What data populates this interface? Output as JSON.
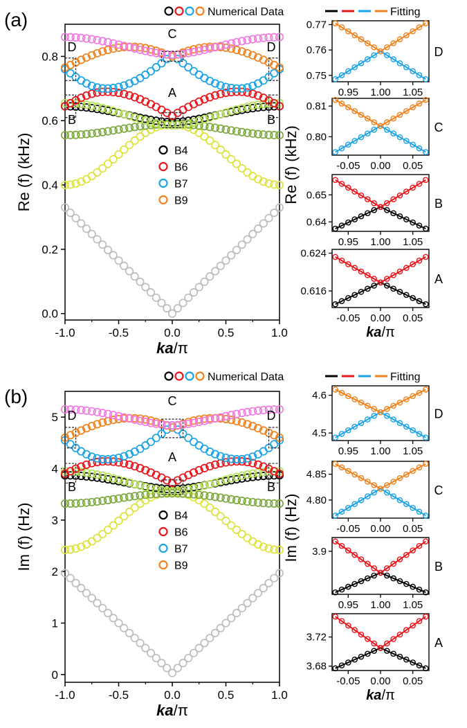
{
  "colors": {
    "B1": "#bdbdbd",
    "B2": "#dde23a",
    "B3": "#7aa83a",
    "B4": "#000000",
    "B5": "#b6e25a",
    "B6": "#e8141a",
    "B7": "#1aa2e6",
    "B8": "#f07bde",
    "B9": "#f0821e"
  },
  "header": {
    "numerical_label": "Numerical Data",
    "fitting_label": "Fitting"
  },
  "chart_data": [
    {
      "id": "a-main",
      "panel_label": "(a)",
      "type": "scatter",
      "xlabel": "ka/π",
      "ylabel": "Re (f) (kHz)",
      "xlim": [
        -1.0,
        1.0
      ],
      "ylim": [
        -0.02,
        0.9
      ],
      "xticks": [
        "-1.0",
        "-0.5",
        "0.0",
        "0.5",
        "1.0"
      ],
      "yticks": [
        "0.0",
        "0.2",
        "0.4",
        "0.6",
        "0.8"
      ],
      "legend": [
        "B4",
        "B6",
        "B7",
        "B9"
      ],
      "box_labels": [
        "A",
        "B",
        "B",
        "C",
        "D",
        "D"
      ],
      "series": [
        {
          "band": "B1",
          "kind": "abs",
          "params": [
            0.0,
            0.33
          ]
        },
        {
          "band": "B2",
          "kind": "cos",
          "params": [
            0.59,
            0.4,
            1
          ]
        },
        {
          "band": "B3",
          "kind": "cos",
          "params": [
            0.59,
            0.555,
            1
          ]
        },
        {
          "band": "B4",
          "kind": "cos",
          "params": [
            0.595,
            0.645,
            2
          ]
        },
        {
          "band": "B5",
          "kind": "cos",
          "params": [
            0.585,
            0.655,
            2
          ]
        },
        {
          "band": "B6",
          "kind": "cusp",
          "params": [
            0.615,
            0.69,
            0.645,
            0.62
          ]
        },
        {
          "band": "B7",
          "kind": "cusp",
          "params": [
            0.805,
            0.7,
            0.76,
            0.62
          ]
        },
        {
          "band": "B9",
          "kind": "cusp",
          "params": [
            0.8,
            0.83,
            0.765,
            0.38
          ]
        },
        {
          "band": "B8",
          "kind": "cos",
          "params": [
            0.805,
            0.86,
            2
          ]
        }
      ]
    },
    {
      "id": "b-main",
      "panel_label": "(b)",
      "type": "scatter",
      "xlabel": "ka/π",
      "ylabel": "Im (f) (Hz)",
      "xlim": [
        -1.0,
        1.0
      ],
      "ylim": [
        -0.15,
        5.5
      ],
      "xticks": [
        "-1.0",
        "-0.5",
        "0.0",
        "0.5",
        "1.0"
      ],
      "yticks": [
        "0",
        "1",
        "2",
        "3",
        "4",
        "5"
      ],
      "legend": [
        "B4",
        "B6",
        "B7",
        "B9"
      ],
      "box_labels": [
        "A",
        "B",
        "B",
        "C",
        "D",
        "D"
      ],
      "series": [
        {
          "band": "B1",
          "kind": "abs",
          "params": [
            0.03,
            1.97
          ]
        },
        {
          "band": "B2",
          "kind": "cos",
          "params": [
            3.55,
            2.42,
            1
          ]
        },
        {
          "band": "B3",
          "kind": "cos",
          "params": [
            3.52,
            3.32,
            1
          ]
        },
        {
          "band": "B4",
          "kind": "cos",
          "params": [
            3.6,
            3.87,
            2
          ]
        },
        {
          "band": "B5",
          "kind": "cos",
          "params": [
            3.56,
            3.95,
            2
          ]
        },
        {
          "band": "B6",
          "kind": "cusp",
          "params": [
            3.72,
            4.14,
            3.9,
            0.62
          ]
        },
        {
          "band": "B7",
          "kind": "cusp",
          "params": [
            4.84,
            4.18,
            4.55,
            0.62
          ]
        },
        {
          "band": "B9",
          "kind": "cusp",
          "params": [
            4.8,
            4.98,
            4.6,
            0.38
          ]
        },
        {
          "band": "B8",
          "kind": "cos",
          "params": [
            4.84,
            5.15,
            2
          ]
        }
      ]
    },
    {
      "id": "a-D",
      "type": "scatter",
      "label": "D",
      "xlim": [
        0.925,
        1.075
      ],
      "ylim": [
        0.7475,
        0.7715
      ],
      "xticks": [
        "0.95",
        "1.00",
        "1.05"
      ],
      "xtick_vals": [
        0.95,
        1.0,
        1.05
      ],
      "yticks": [
        "0.75",
        "0.76",
        "0.77"
      ],
      "ytick_vals": [
        0.75,
        0.76,
        0.77
      ],
      "x_range": [
        0.93,
        1.07
      ],
      "center": 1.0,
      "upper": {
        "band": "B9",
        "at_center": 0.7595,
        "at_edge": 0.7705
      },
      "lower": {
        "band": "B7",
        "at_center": 0.7595,
        "at_edge": 0.7485
      }
    },
    {
      "id": "a-C",
      "type": "scatter",
      "label": "C",
      "xlim": [
        -0.075,
        0.075
      ],
      "ylim": [
        0.794,
        0.8125
      ],
      "xticks": [
        "-0.05",
        "0.00",
        "0.05"
      ],
      "xtick_vals": [
        -0.05,
        0.0,
        0.05
      ],
      "yticks": [
        "0.80",
        "0.81"
      ],
      "ytick_vals": [
        0.8,
        0.81
      ],
      "x_range": [
        -0.07,
        0.07
      ],
      "center": 0.0,
      "upper": {
        "band": "B9",
        "at_center": 0.8035,
        "at_edge": 0.812
      },
      "lower": {
        "band": "B7",
        "at_center": 0.8035,
        "at_edge": 0.795
      }
    },
    {
      "id": "a-B",
      "type": "scatter",
      "label": "B",
      "xlim": [
        0.925,
        1.075
      ],
      "ylim": [
        0.6365,
        0.6575
      ],
      "xticks": [
        "0.95",
        "1.00",
        "1.05"
      ],
      "xtick_vals": [
        0.95,
        1.0,
        1.05
      ],
      "yticks": [
        "0.64",
        "0.65"
      ],
      "ytick_vals": [
        0.64,
        0.65
      ],
      "x_range": [
        0.93,
        1.07
      ],
      "center": 1.0,
      "upper": {
        "band": "B6",
        "at_center": 0.6455,
        "at_edge": 0.6555
      },
      "lower": {
        "band": "B4",
        "at_center": 0.6455,
        "at_edge": 0.6375
      }
    },
    {
      "id": "a-A",
      "type": "scatter",
      "label": "A",
      "xlim": [
        -0.075,
        0.075
      ],
      "ylim": [
        0.6125,
        0.6248
      ],
      "xticks": [
        "-0.05",
        "0.00",
        "0.05"
      ],
      "xtick_vals": [
        -0.05,
        0.0,
        0.05
      ],
      "yticks": [
        "0.616",
        "0.624"
      ],
      "ytick_vals": [
        0.616,
        0.624
      ],
      "x_range": [
        -0.07,
        0.07
      ],
      "center": 0.0,
      "xlabel": "ka/π",
      "upper": {
        "band": "B6",
        "at_center": 0.6178,
        "at_edge": 0.6232
      },
      "lower": {
        "band": "B4",
        "at_center": 0.6178,
        "at_edge": 0.6132
      }
    },
    {
      "id": "b-D",
      "type": "scatter",
      "label": "D",
      "xlim": [
        0.925,
        1.075
      ],
      "ylim": [
        4.48,
        4.625
      ],
      "xticks": [
        "0.95",
        "1.00",
        "1.05"
      ],
      "xtick_vals": [
        0.95,
        1.0,
        1.05
      ],
      "yticks": [
        "4.5",
        "4.6"
      ],
      "ytick_vals": [
        4.5,
        4.6
      ],
      "x_range": [
        0.93,
        1.07
      ],
      "center": 1.0,
      "upper": {
        "band": "B9",
        "at_center": 4.555,
        "at_edge": 4.615
      },
      "lower": {
        "band": "B7",
        "at_center": 4.555,
        "at_edge": 4.488
      }
    },
    {
      "id": "b-C",
      "type": "scatter",
      "label": "C",
      "xlim": [
        -0.075,
        0.075
      ],
      "ylim": [
        4.765,
        4.875
      ],
      "xticks": [
        "-0.05",
        "0.00",
        "0.05"
      ],
      "xtick_vals": [
        -0.05,
        0.0,
        0.05
      ],
      "yticks": [
        "4.80",
        "4.85"
      ],
      "ytick_vals": [
        4.8,
        4.85
      ],
      "x_range": [
        -0.07,
        0.07
      ],
      "center": 0.0,
      "upper": {
        "band": "B9",
        "at_center": 4.822,
        "at_edge": 4.87
      },
      "lower": {
        "band": "B7",
        "at_center": 4.822,
        "at_edge": 4.77
      }
    },
    {
      "id": "b-B",
      "type": "scatter",
      "label": "B",
      "xlim": [
        0.925,
        1.075
      ],
      "ylim": [
        3.79,
        3.935
      ],
      "xticks": [
        "0.95",
        "1.00",
        "1.05"
      ],
      "xtick_vals": [
        0.95,
        1.0,
        1.05
      ],
      "yticks": [
        "3.9"
      ],
      "ytick_vals": [
        3.9
      ],
      "x_range": [
        0.93,
        1.07
      ],
      "center": 1.0,
      "upper": {
        "band": "B6",
        "at_center": 3.845,
        "at_edge": 3.925
      },
      "lower": {
        "band": "B4",
        "at_center": 3.845,
        "at_edge": 3.795
      }
    },
    {
      "id": "b-A",
      "type": "scatter",
      "label": "A",
      "xlim": [
        -0.075,
        0.075
      ],
      "ylim": [
        3.674,
        3.752
      ],
      "xticks": [
        "-0.05",
        "0.00",
        "0.05"
      ],
      "xtick_vals": [
        -0.05,
        0.0,
        0.05
      ],
      "yticks": [
        "3.68",
        "3.72"
      ],
      "ytick_vals": [
        3.68,
        3.72
      ],
      "x_range": [
        -0.07,
        0.07
      ],
      "center": 0.0,
      "xlabel": "ka/π",
      "upper": {
        "band": "B6",
        "at_center": 3.705,
        "at_edge": 3.748
      },
      "lower": {
        "band": "B4",
        "at_center": 3.705,
        "at_edge": 3.677
      }
    }
  ],
  "inset_axis_label": "Re (f) (kHz)",
  "inset_axis_label_b": "Im (f) (Hz)"
}
